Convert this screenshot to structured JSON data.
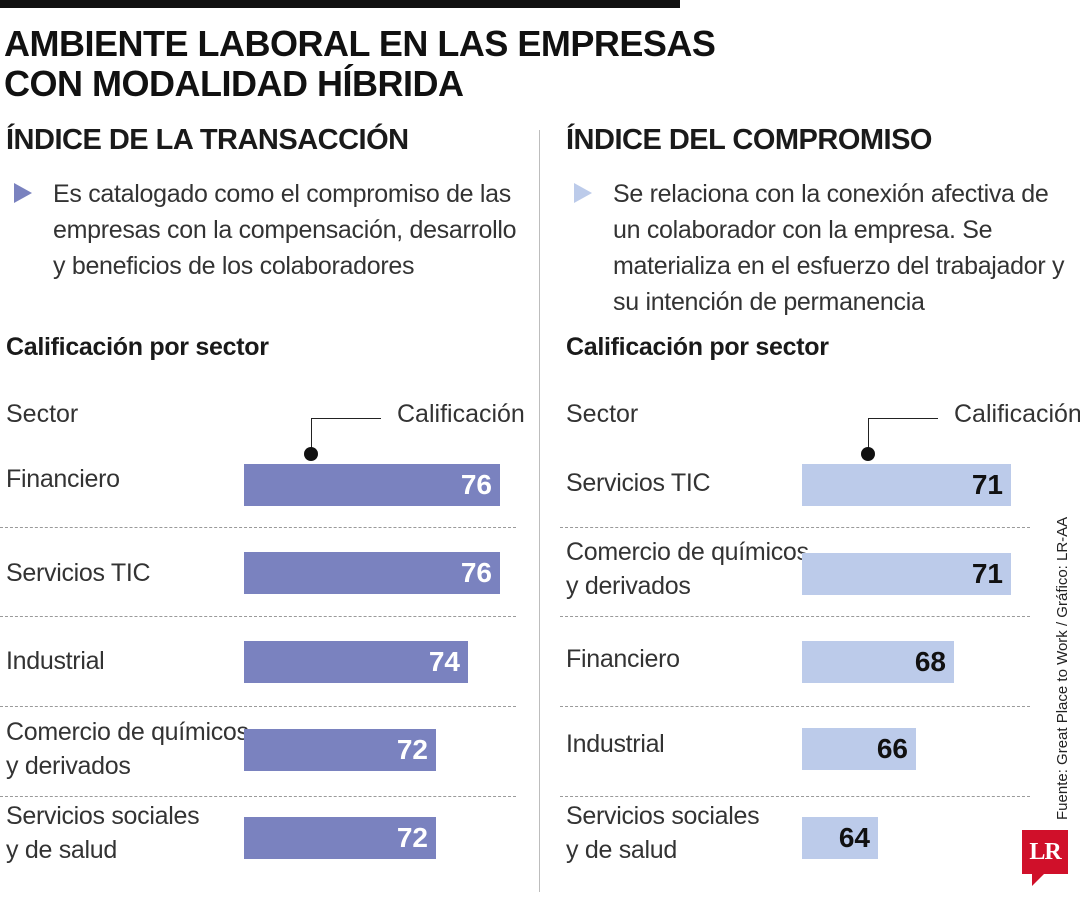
{
  "header": {
    "title_line1": "AMBIENTE LABORAL EN LAS EMPRESAS",
    "title_line2": "CON MODALIDAD HÍBRIDA"
  },
  "left": {
    "title": "ÍNDICE DE LA TRANSACCIÓN",
    "description": "Es catalogado como el compromiso de las empresas con la compensación, desarrollo y beneficios de los colaboradores",
    "subtitle": "Calificación por sector",
    "col_sector": "Sector",
    "col_value": "Calificación"
  },
  "right": {
    "title": "ÍNDICE DEL COMPROMISO",
    "description": "Se relaciona con la conexión afectiva de un colaborador con la empresa. Se materializa en el esfuerzo del trabajador y su intención de permanencia",
    "subtitle": "Calificación por sector",
    "col_sector": "Sector",
    "col_value": "Calificación"
  },
  "chart_data": [
    {
      "type": "bar",
      "orientation": "horizontal",
      "title": "Calificación por sector",
      "categories": [
        [
          "Financiero"
        ],
        [
          "Servicios TIC"
        ],
        [
          "Industrial"
        ],
        [
          "Comercio de químicos",
          "y derivados"
        ],
        [
          "Servicios sociales",
          "y de salud"
        ]
      ],
      "values": [
        76,
        76,
        74,
        72,
        72
      ],
      "color": "#7a82bf",
      "value_color": "#ffffff"
    },
    {
      "type": "bar",
      "orientation": "horizontal",
      "title": "Calificación por sector",
      "categories": [
        [
          "Servicios TIC"
        ],
        [
          "Comercio de químicos",
          "y derivados"
        ],
        [
          "Financiero"
        ],
        [
          "Industrial"
        ],
        [
          "Servicios sociales",
          "y de salud"
        ]
      ],
      "values": [
        71,
        71,
        68,
        66,
        64
      ],
      "color": "#bccbea",
      "value_color": "#111111"
    }
  ],
  "footer": {
    "source": "Fuente: Great Place to Work / Gráfico: LR-AA",
    "logo": "LR"
  },
  "colors": {
    "left_accent": "#7a82bf",
    "right_accent": "#bccbea"
  }
}
